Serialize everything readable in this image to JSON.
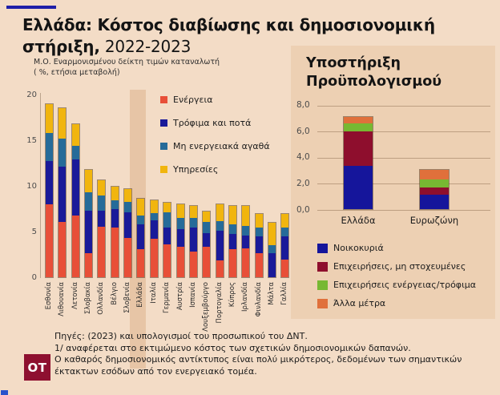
{
  "page": {
    "title_line1": "Ελλάδα: Κόστος διαβίωσης και δημοσιονομική",
    "title_line2_bold": "στήριξη,",
    "title_line2_regular": " 2022-2023"
  },
  "main_chart": {
    "subtitle_line1": "Μ.Ο. Εναρμονισμένου δείκτη τιμών καταναλωτή",
    "subtitle_line2": "( %, ετήσια μεταβολή)"
  },
  "budget_panel": {
    "title_line1": "Υποστήριξη",
    "title_line2": "Προϋπολογισμού"
  },
  "footer": {
    "logo": "OT",
    "line1": "Πηγές: (2023) και υπολογισμοί του προσωπικού του ΔΝΤ.",
    "line2": "1/ αναφέρεται στο εκτιμώμενο κόστος των σχετικών δημοσιονομικών δαπανών.",
    "line3": "Ο καθαρός δημοσιονομικός αντίκτυπος είναι πολύ μικρότερος, δεδομένων των σημαντικών",
    "line4": "έκτακτων εσόδων από τον ενεργειακό τομέα."
  },
  "colors": {
    "background": "#f3dcc6",
    "panel": "#edd0b3",
    "highlight_band": "#e2bc99",
    "energy_red": "#e84f38",
    "food_navy": "#1a1a99",
    "non_energy_blue": "#266b99",
    "services_yellow": "#f1b50e",
    "households_navy": "#15159b",
    "untargeted_maroon": "#8e0e2d",
    "energy_food_green": "#77b832",
    "other_orange": "#e0703b",
    "top_line_navy": "#1f1fa8",
    "logo_maroon": "#8e1030"
  },
  "chart_data": [
    {
      "type": "bar",
      "stacked": true,
      "title": "Μ.Ο. Εναρμονισμένου δείκτη τιμών καταναλωτή (%, ετήσια μεταβολή)",
      "ylim": [
        0,
        20
      ],
      "yticks": [
        0,
        5,
        10,
        15,
        20
      ],
      "grid": false,
      "legend_position": "top-right-inside",
      "highlight_category": "Ελλάδα",
      "categories": [
        "Εσθονία",
        "Λιθουανία",
        "Λετονία",
        "Σλοβακία",
        "Ολλανδία",
        "Βέλγιο",
        "Σλοβενία",
        "Ελλάδα",
        "Ιταλία",
        "Γερμανία",
        "Αυστρία",
        "Ισπανία",
        "Λουξεμβούργο",
        "Πορτογαλία",
        "Κύπρος",
        "Ιρλανδία",
        "Φινλανδία",
        "Μάλτα",
        "Γαλλία"
      ],
      "series": [
        {
          "name": "Ενέργεια",
          "color": "#e84f38",
          "values": [
            8.1,
            6.1,
            6.8,
            2.7,
            5.6,
            5.5,
            4.4,
            3.1,
            4.3,
            3.7,
            3.4,
            2.9,
            3.4,
            1.9,
            3.1,
            3.2,
            2.7,
            0.0,
            2.0
          ]
        },
        {
          "name": "Τρόφιμα και ποτά",
          "color": "#1a1a99",
          "values": [
            4.7,
            6.1,
            6.2,
            4.7,
            1.8,
            2.1,
            2.8,
            2.8,
            2.1,
            1.9,
            2.0,
            2.7,
            1.5,
            3.3,
            1.7,
            1.5,
            1.9,
            2.7,
            2.6
          ]
        },
        {
          "name": "Μη ενεργειακά αγαθά",
          "color": "#266b99",
          "values": [
            3.1,
            3.1,
            1.5,
            2.0,
            1.7,
            1.0,
            1.2,
            1.0,
            0.8,
            1.7,
            1.2,
            1.0,
            1.3,
            1.1,
            1.1,
            1.0,
            1.0,
            0.9,
            1.0
          ]
        },
        {
          "name": "Υπηρεσίες",
          "color": "#f1b50e",
          "values": [
            3.2,
            3.4,
            2.4,
            2.5,
            1.7,
            1.5,
            1.4,
            1.9,
            1.4,
            1.0,
            1.6,
            1.4,
            1.2,
            1.9,
            2.1,
            2.3,
            1.5,
            2.5,
            1.5
          ]
        }
      ]
    },
    {
      "type": "bar",
      "stacked": true,
      "title": "Υποστήριξη Προϋπολογισμού",
      "ylim": [
        0,
        8
      ],
      "ytick_values": [
        0,
        2,
        4,
        6,
        8
      ],
      "ytick_labels": [
        "0,0",
        "2,0",
        "4,0",
        "6,0",
        "8,0"
      ],
      "grid": true,
      "legend_position": "bottom",
      "categories": [
        "Ελλάδα",
        "Ευρωζώνη"
      ],
      "series": [
        {
          "name": "Νοικοκυριά",
          "color": "#15159b",
          "values": [
            3.35,
            1.15
          ]
        },
        {
          "name": "Επιχειρήσεις, μη στοχευμένες",
          "color": "#8e0e2d",
          "values": [
            2.7,
            0.55
          ]
        },
        {
          "name": "Επιχειρήσεις ενέργειας/τρόφιμα",
          "color": "#77b832",
          "values": [
            0.65,
            0.65
          ]
        },
        {
          "name": "Άλλα μέτρα",
          "color": "#e0703b",
          "values": [
            0.45,
            0.8
          ]
        }
      ]
    }
  ]
}
